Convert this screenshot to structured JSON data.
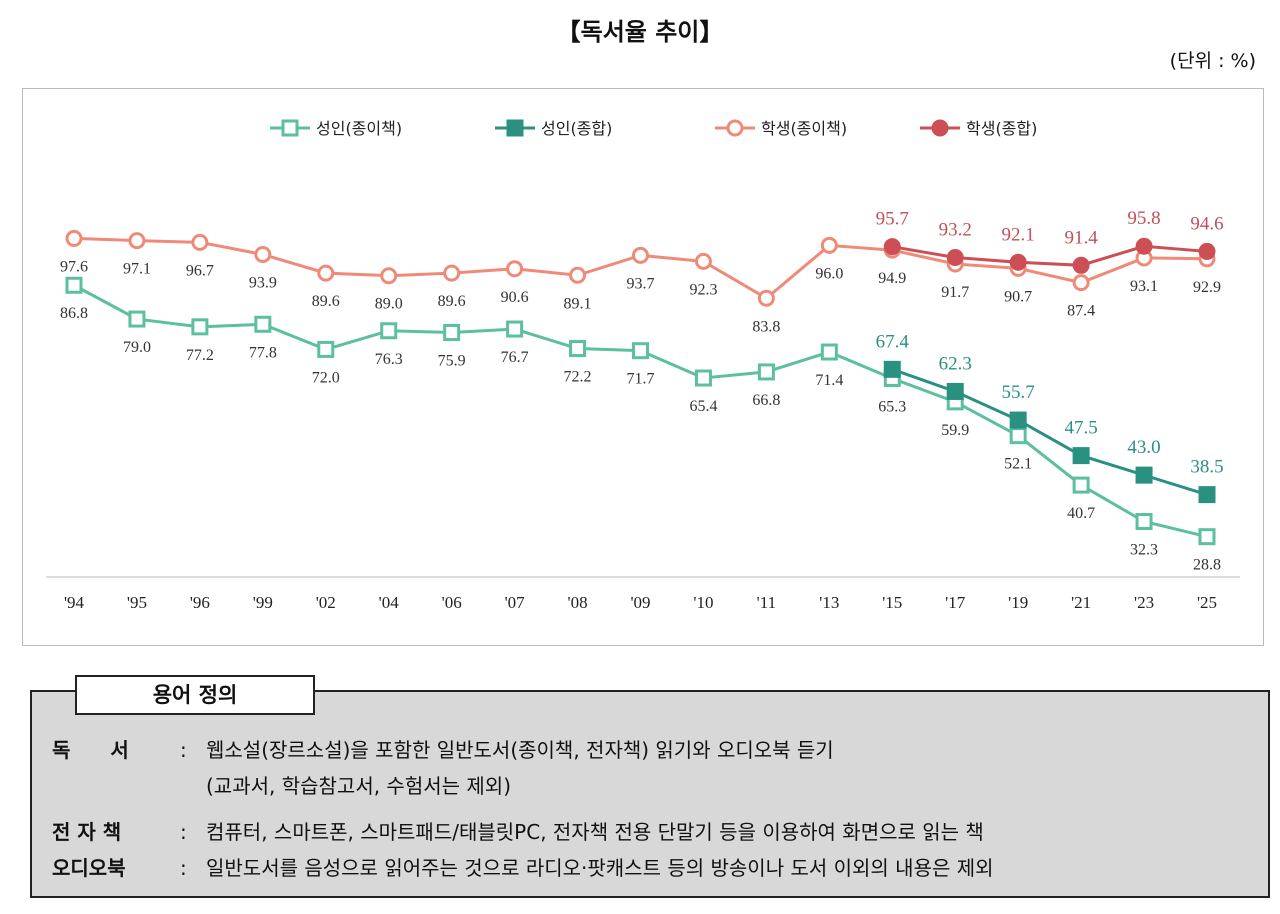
{
  "title": "【독서율 추이】",
  "unit": "(단위 : %)",
  "chart_data": {
    "type": "line",
    "title": "【독서율 추이】",
    "unit": "(단위 : %)",
    "categories": [
      "'94",
      "'95",
      "'96",
      "'99",
      "'02",
      "'04",
      "'06",
      "'07",
      "'08",
      "'09",
      "'10",
      "'11",
      "'13",
      "'15",
      "'17",
      "'19",
      "'21",
      "'23",
      "'25"
    ],
    "ylim": [
      19.5,
      105
    ],
    "grid": false,
    "legend": "top",
    "series": [
      {
        "name": "성인(종이책)",
        "color": "#5bbfa0",
        "marker": "hollow-square",
        "label_pos": "below",
        "label_color": "#333333",
        "values": [
          86.8,
          79.0,
          77.2,
          77.8,
          72.0,
          76.3,
          75.9,
          76.7,
          72.2,
          71.7,
          65.4,
          66.8,
          71.4,
          65.3,
          59.9,
          52.1,
          40.7,
          32.3,
          28.8
        ]
      },
      {
        "name": "성인(종합)",
        "color": "#2a9080",
        "marker": "filled-square",
        "label_pos": "above",
        "label_color": "#2a9080",
        "values": [
          null,
          null,
          null,
          null,
          null,
          null,
          null,
          null,
          null,
          null,
          null,
          null,
          null,
          67.4,
          62.3,
          55.7,
          47.5,
          43.0,
          38.5
        ]
      },
      {
        "name": "학생(종이책)",
        "color": "#f08a78",
        "marker": "hollow-circle",
        "label_pos": "below",
        "label_color": "#333333",
        "values": [
          97.6,
          97.1,
          96.7,
          93.9,
          89.6,
          89.0,
          89.6,
          90.6,
          89.1,
          93.7,
          92.3,
          83.8,
          96.0,
          94.9,
          91.7,
          90.7,
          87.4,
          93.1,
          92.9
        ]
      },
      {
        "name": "학생(종합)",
        "color": "#cc4f55",
        "marker": "filled-circle",
        "label_pos": "above",
        "label_color": "#c0505a",
        "values": [
          null,
          null,
          null,
          null,
          null,
          null,
          null,
          null,
          null,
          null,
          null,
          null,
          null,
          95.7,
          93.2,
          92.1,
          91.4,
          95.8,
          94.6
        ]
      }
    ]
  },
  "definitions": {
    "tab": "용어 정의",
    "items": [
      {
        "term": "독　　서",
        "desc": "웹소설(장르소설)을 포함한 일반도서(종이책, 전자책) 읽기와 오디오북 듣기",
        "desc2": "(교과서, 학습참고서, 수험서는 제외)"
      },
      {
        "term": "전 자 책",
        "desc": "컴퓨터, 스마트폰, 스마트패드/태블릿PC, 전자책 전용 단말기 등을 이용하여 화면으로 읽는 책"
      },
      {
        "term": "오디오북",
        "desc": "일반도서를 음성으로 읽어주는 것으로 라디오·팟캐스트 등의 방송이나 도서 이외의 내용은 제외"
      }
    ],
    "colon": ":"
  }
}
